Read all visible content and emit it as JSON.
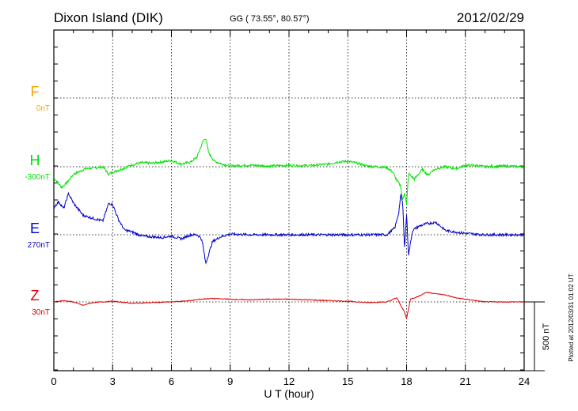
{
  "header": {
    "station": "Dixon Island (DIK)",
    "coords": "GG ( 73.55°,  80.57°)",
    "date": "2012/02/29"
  },
  "footer": {
    "plotted": "Plotted at 2012/03/31 01:02 UT"
  },
  "colors": {
    "F": "#ffa500",
    "H": "#00e000",
    "E": "#0000cc",
    "Z": "#dd0000"
  },
  "chart_data": {
    "type": "line",
    "title": "Dixon Island (DIK)",
    "xlabel": "U T (hour)",
    "xlim": [
      0,
      24
    ],
    "xticks": [
      "0",
      "3",
      "6",
      "9",
      "12",
      "15",
      "18",
      "21",
      "24"
    ],
    "scale_bar": {
      "label": "500 nT",
      "value": 500
    },
    "y_unit": "nT",
    "grid": true,
    "series": [
      {
        "name": "F",
        "baseline_label": "0nT",
        "color": "#ffa500",
        "x": [],
        "y": []
      },
      {
        "name": "H",
        "baseline_label": "-300nT",
        "color": "#00e000",
        "x": [
          0,
          0.4,
          0.7,
          1.0,
          1.3,
          1.6,
          2.0,
          2.5,
          2.8,
          3.0,
          3.5,
          4.0,
          4.5,
          5.0,
          5.5,
          6.0,
          6.5,
          7.0,
          7.3,
          7.6,
          7.75,
          7.9,
          8.2,
          8.6,
          9.0,
          10.0,
          11.0,
          12.0,
          13.0,
          14.0,
          14.5,
          15.0,
          15.5,
          16.0,
          16.5,
          17.0,
          17.3,
          17.5,
          17.7,
          17.8,
          17.9,
          18.0,
          18.1,
          18.4,
          18.8,
          19.1,
          19.3,
          19.6,
          20.0,
          20.5,
          21.0,
          21.5,
          22.0,
          23.0,
          24.0
        ],
        "y": [
          -80,
          -150,
          -110,
          -55,
          -35,
          -15,
          -10,
          0,
          -55,
          -40,
          -15,
          15,
          30,
          25,
          35,
          45,
          20,
          35,
          70,
          180,
          210,
          100,
          40,
          20,
          5,
          12,
          5,
          10,
          8,
          20,
          35,
          40,
          25,
          5,
          0,
          -5,
          -40,
          -100,
          -140,
          -250,
          -180,
          -280,
          -50,
          -90,
          -20,
          -60,
          -30,
          -10,
          0,
          -15,
          10,
          10,
          0,
          5,
          0
        ]
      },
      {
        "name": "E",
        "baseline_label": "270nT",
        "color": "#0000cc",
        "x": [
          0,
          0.25,
          0.5,
          0.75,
          1.0,
          1.5,
          2.0,
          2.5,
          2.8,
          3.0,
          3.3,
          3.6,
          4.0,
          4.5,
          5.0,
          5.5,
          6.0,
          6.5,
          7.0,
          7.3,
          7.5,
          7.6,
          7.75,
          7.9,
          8.1,
          8.5,
          9.0,
          10.0,
          11.0,
          12.0,
          13.0,
          14.0,
          15.0,
          16.0,
          17.0,
          17.4,
          17.6,
          17.7,
          17.8,
          17.9,
          18.0,
          18.1,
          18.3,
          18.6,
          19.0,
          19.5,
          20.0,
          21.0,
          22.0,
          23.0,
          24.0
        ],
        "y": [
          200,
          240,
          190,
          300,
          230,
          140,
          120,
          100,
          230,
          220,
          110,
          35,
          20,
          -10,
          -15,
          -20,
          -10,
          -30,
          0,
          0,
          -20,
          -70,
          -210,
          -140,
          -50,
          -15,
          5,
          0,
          0,
          0,
          0,
          0,
          0,
          0,
          0,
          50,
          160,
          290,
          230,
          -100,
          150,
          -150,
          30,
          60,
          80,
          90,
          30,
          10,
          0,
          0,
          0
        ]
      },
      {
        "name": "Z",
        "baseline_label": "30nT",
        "color": "#dd0000",
        "x": [
          0,
          0.5,
          1.0,
          1.3,
          1.5,
          1.8,
          2.0,
          3.0,
          4.0,
          5.0,
          6.0,
          7.0,
          7.5,
          8.0,
          9.0,
          10.0,
          11.0,
          12.0,
          13.0,
          14.0,
          15.0,
          16.0,
          17.0,
          17.5,
          17.7,
          17.85,
          18.0,
          18.2,
          18.6,
          19.0,
          19.5,
          20.0,
          20.5,
          21.0,
          22.0,
          23.0,
          24.0
        ],
        "y": [
          0,
          10,
          0,
          -15,
          -25,
          -10,
          -5,
          5,
          -10,
          -5,
          0,
          10,
          20,
          25,
          20,
          15,
          20,
          20,
          15,
          10,
          5,
          -5,
          0,
          30,
          -25,
          -60,
          -120,
          20,
          40,
          70,
          60,
          50,
          30,
          20,
          0,
          0,
          0
        ]
      }
    ]
  }
}
